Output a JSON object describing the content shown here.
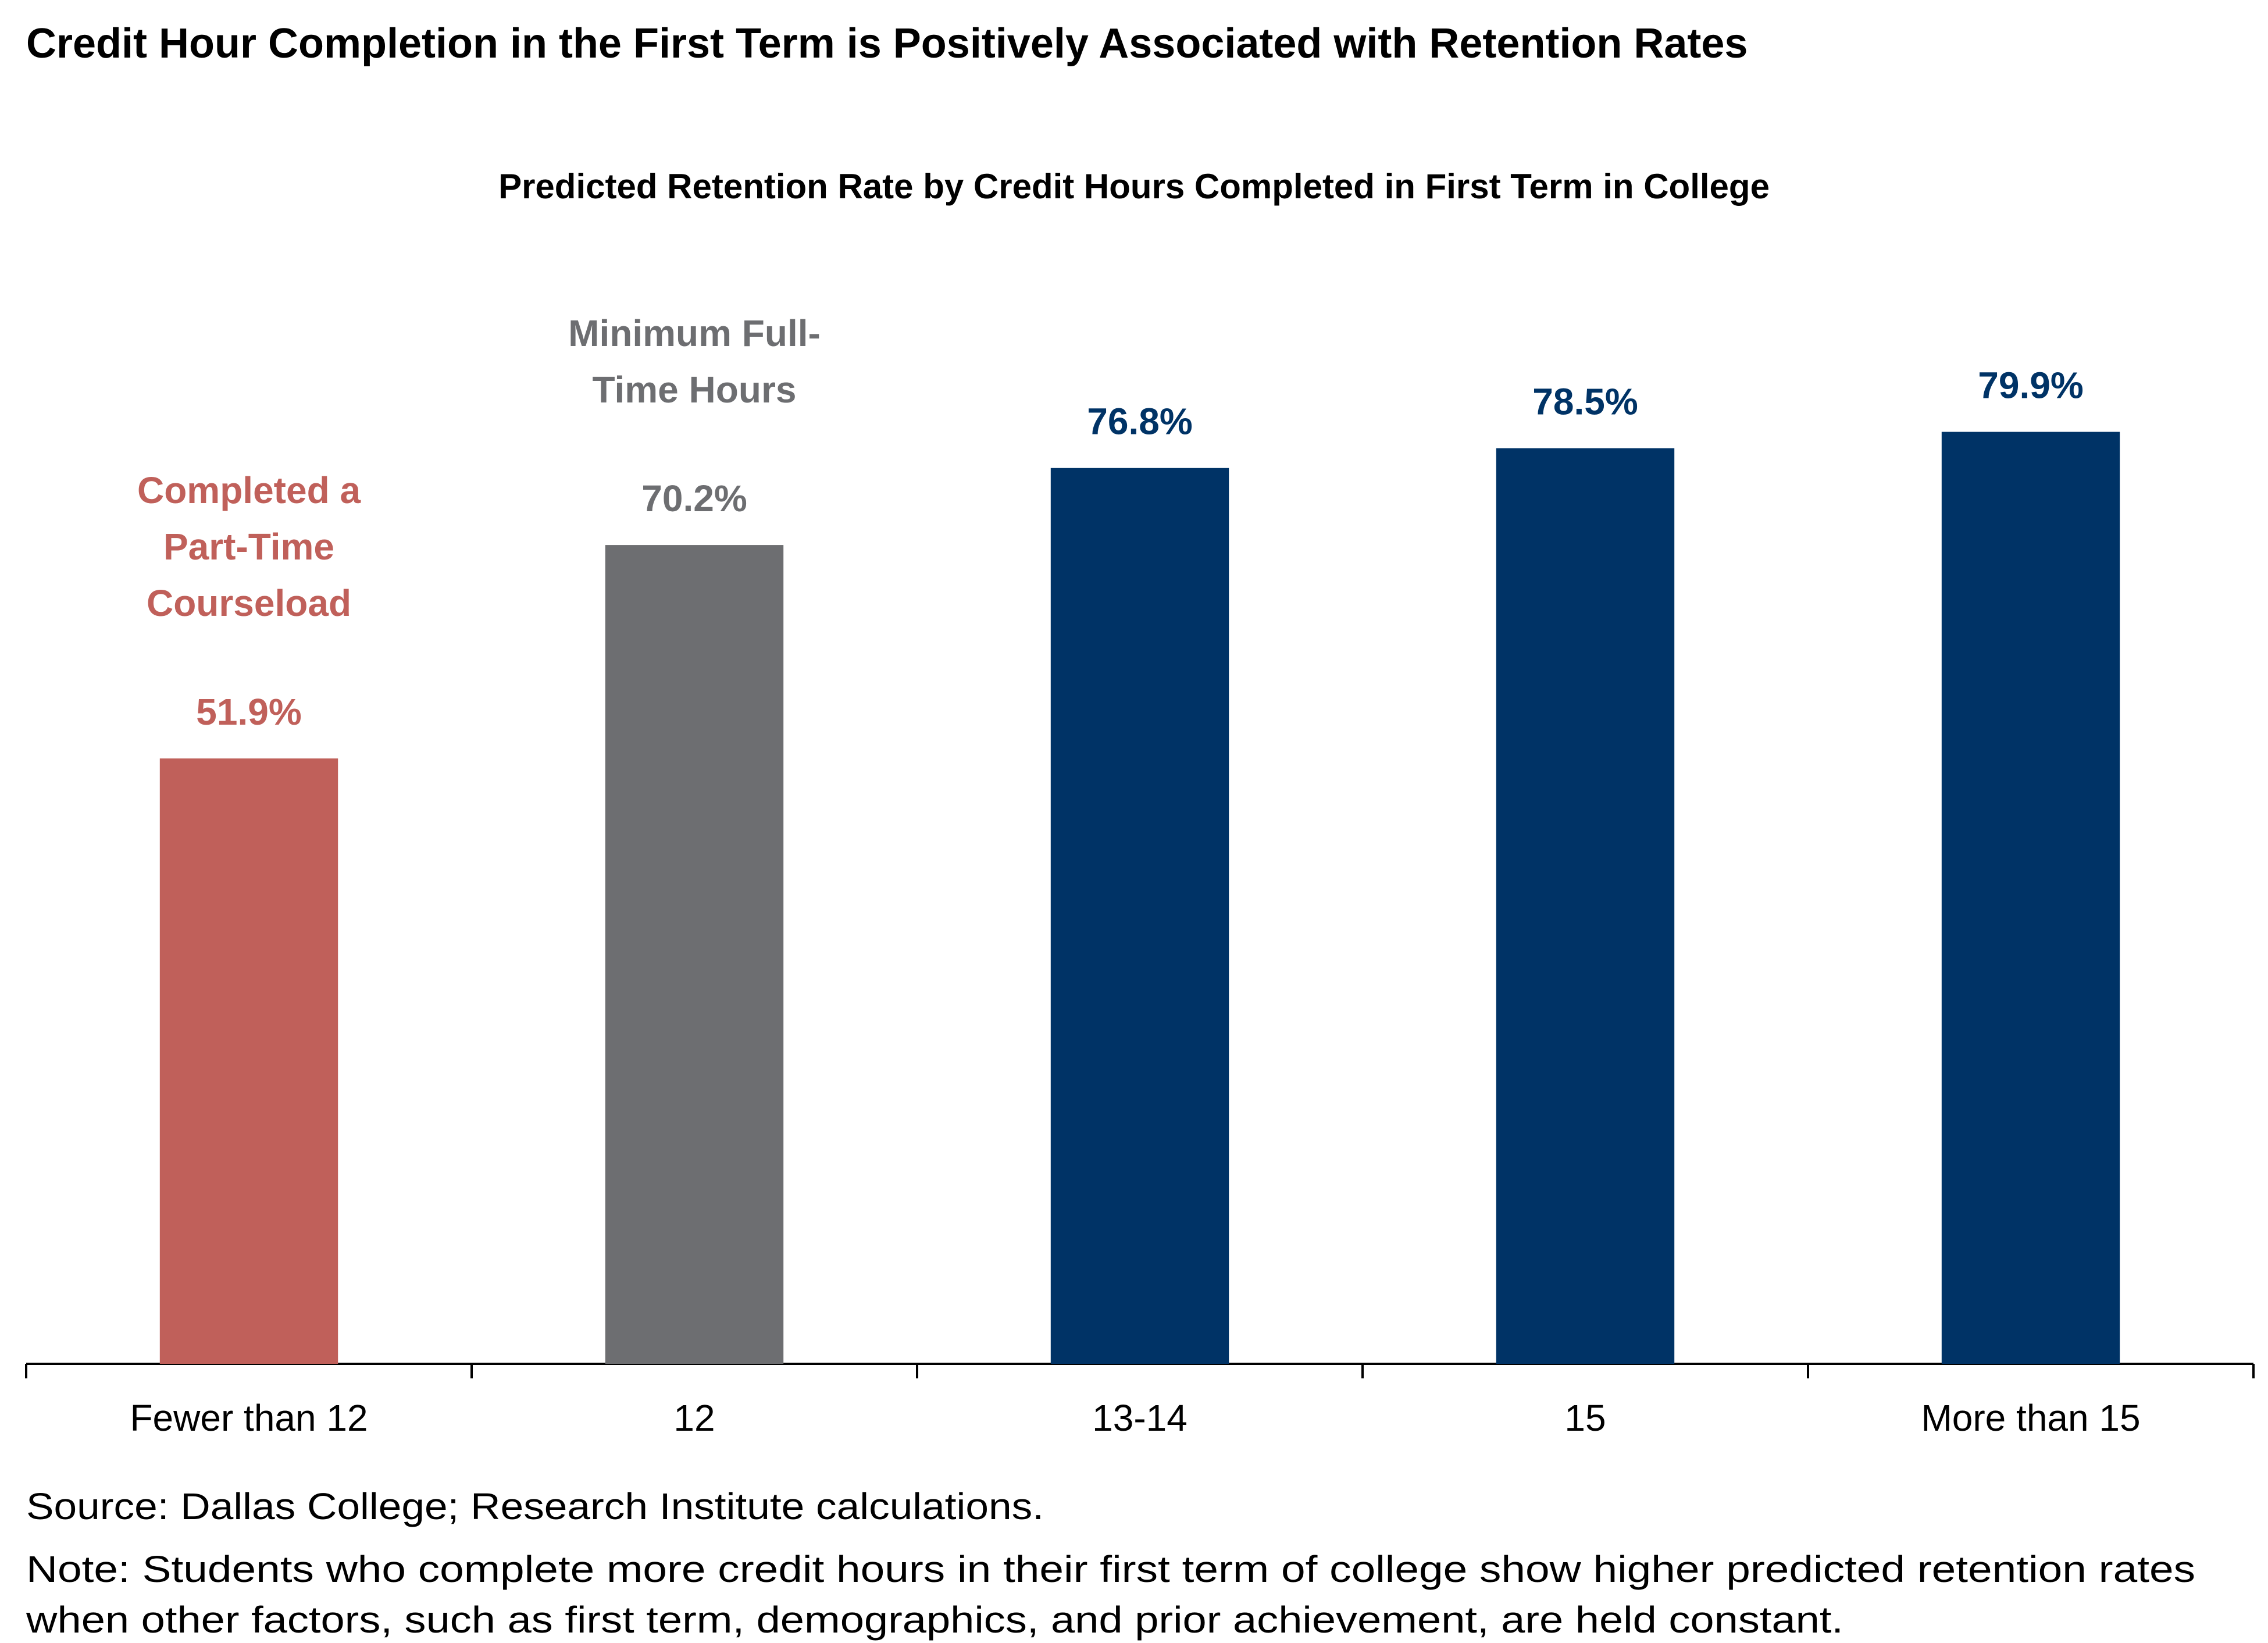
{
  "chart_data": {
    "type": "bar",
    "title": "Credit Hour Completion in the First Term is Positively Associated with Retention Rates",
    "subtitle": "Predicted Retention Rate by Credit Hours Completed in First Term in College",
    "categories": [
      "Fewer than 12",
      "12",
      "13-14",
      "15",
      "More than 15"
    ],
    "values": [
      51.9,
      70.2,
      76.8,
      78.5,
      79.9
    ],
    "value_labels": [
      "51.9%",
      "70.2%",
      "76.8%",
      "78.5%",
      "79.9%"
    ],
    "colors": [
      "#c0605a",
      "#6d6e71",
      "#003366",
      "#003366",
      "#003366"
    ],
    "annotations": [
      [
        "Completed a",
        "Part-Time",
        "Courseload"
      ],
      [
        "Minimum Full-",
        "Time Hours"
      ],
      null,
      null,
      null
    ],
    "ylim": [
      0,
      90
    ],
    "grid": false,
    "source": "Source: Dallas College; Research Institute calculations.",
    "note_lines": [
      "Note: Students who complete more credit hours in their first term of college show higher predicted retention rates",
      "when other factors, such as first term, demographics, and prior achievement, are held constant."
    ]
  }
}
